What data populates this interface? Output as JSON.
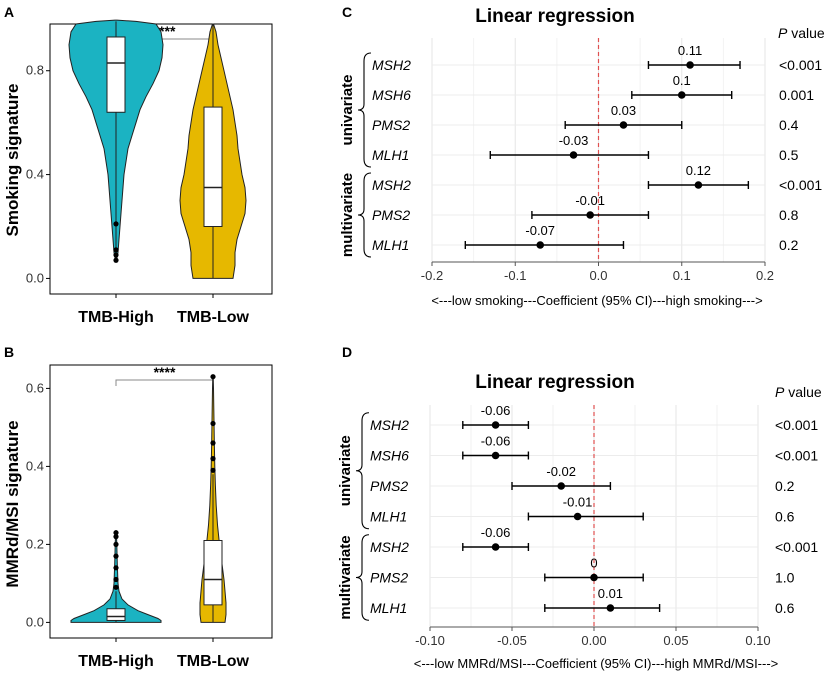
{
  "chart_data": [
    {
      "type": "violin",
      "panel": "A",
      "ylabel": "Smoking signature",
      "ylim": [
        -0.06,
        0.98
      ],
      "yticks": [
        "0.0",
        "0.4",
        "0.8"
      ],
      "categories": [
        "TMB-High",
        "TMB-Low"
      ],
      "significance": "****",
      "colors": [
        "#1bb3c2",
        "#e6b800"
      ],
      "boxes": [
        {
          "min": 0.07,
          "q1": 0.64,
          "median": 0.83,
          "q3": 0.93,
          "max": 0.99,
          "outliers": [
            0.07,
            0.09,
            0.11,
            0.21
          ]
        },
        {
          "min": 0.0,
          "q1": 0.2,
          "median": 0.35,
          "q3": 0.66,
          "max": 0.98,
          "outliers": []
        }
      ]
    },
    {
      "type": "violin",
      "panel": "B",
      "ylabel": "MMRd/MSI signature",
      "ylim": [
        -0.04,
        0.66
      ],
      "yticks": [
        "0.0",
        "0.2",
        "0.4",
        "0.6"
      ],
      "categories": [
        "TMB-High",
        "TMB-Low"
      ],
      "significance": "****",
      "colors": [
        "#1bb3c2",
        "#e6b800"
      ],
      "boxes": [
        {
          "min": 0.0,
          "q1": 0.005,
          "median": 0.015,
          "q3": 0.035,
          "max": 0.08,
          "outliers": [
            0.09,
            0.11,
            0.14,
            0.17,
            0.2,
            0.22,
            0.23
          ]
        },
        {
          "min": 0.0,
          "q1": 0.045,
          "median": 0.11,
          "q3": 0.21,
          "max": 0.38,
          "outliers": [
            0.39,
            0.42,
            0.46,
            0.51,
            0.63
          ]
        }
      ]
    },
    {
      "type": "forest",
      "panel": "C",
      "title": "Linear regression",
      "xlabel": "<---low smoking---Coefficient (95% CI)---high smoking--->",
      "xlim": [
        -0.2,
        0.2
      ],
      "xticks": [
        "-0.2",
        "-0.1",
        "0.0",
        "0.1",
        "0.2"
      ],
      "p_header": "P value",
      "p_word": "P",
      "p_rest": " value",
      "groups": [
        {
          "name": "univariate",
          "rows": 4
        },
        {
          "name": "multivariate",
          "rows": 3
        }
      ],
      "rows": [
        {
          "gene": "MSH2",
          "est": 0.11,
          "lo": 0.06,
          "hi": 0.17,
          "label": "0.11",
          "p": "<0.001"
        },
        {
          "gene": "MSH6",
          "est": 0.1,
          "lo": 0.04,
          "hi": 0.16,
          "label": "0.1",
          "p": "0.001"
        },
        {
          "gene": "PMS2",
          "est": 0.03,
          "lo": -0.04,
          "hi": 0.1,
          "label": "0.03",
          "p": "0.4"
        },
        {
          "gene": "MLH1",
          "est": -0.03,
          "lo": -0.13,
          "hi": 0.06,
          "label": "-0.03",
          "p": "0.5"
        },
        {
          "gene": "MSH2",
          "est": 0.12,
          "lo": 0.06,
          "hi": 0.18,
          "label": "0.12",
          "p": "<0.001"
        },
        {
          "gene": "PMS2",
          "est": -0.01,
          "lo": -0.08,
          "hi": 0.06,
          "label": "-0.01",
          "p": "0.8"
        },
        {
          "gene": "MLH1",
          "est": -0.07,
          "lo": -0.16,
          "hi": 0.03,
          "label": "-0.07",
          "p": "0.2"
        }
      ]
    },
    {
      "type": "forest",
      "panel": "D",
      "title": "Linear regression",
      "xlabel": "<---low MMRd/MSI---Coefficient (95% CI)---high MMRd/MSI--->",
      "xlim": [
        -0.1,
        0.1
      ],
      "xticks": [
        "-0.10",
        "-0.05",
        "0.00",
        "0.05",
        "0.10"
      ],
      "p_header": "P value",
      "p_word": "P",
      "p_rest": " value",
      "groups": [
        {
          "name": "univariate",
          "rows": 4
        },
        {
          "name": "multivariate",
          "rows": 3
        }
      ],
      "rows": [
        {
          "gene": "MSH2",
          "est": -0.06,
          "lo": -0.08,
          "hi": -0.04,
          "label": "-0.06",
          "p": "<0.001"
        },
        {
          "gene": "MSH6",
          "est": -0.06,
          "lo": -0.08,
          "hi": -0.04,
          "label": "-0.06",
          "p": "<0.001"
        },
        {
          "gene": "PMS2",
          "est": -0.02,
          "lo": -0.05,
          "hi": 0.01,
          "label": "-0.02",
          "p": "0.2"
        },
        {
          "gene": "MLH1",
          "est": -0.01,
          "lo": -0.04,
          "hi": 0.03,
          "label": "-0.01",
          "p": "0.6"
        },
        {
          "gene": "MSH2",
          "est": -0.06,
          "lo": -0.08,
          "hi": -0.04,
          "label": "-0.06",
          "p": "<0.001"
        },
        {
          "gene": "PMS2",
          "est": 0.0,
          "lo": -0.03,
          "hi": 0.03,
          "label": "0",
          "p": "1.0"
        },
        {
          "gene": "MLH1",
          "est": 0.01,
          "lo": -0.03,
          "hi": 0.04,
          "label": "0.01",
          "p": "0.6"
        }
      ]
    }
  ]
}
